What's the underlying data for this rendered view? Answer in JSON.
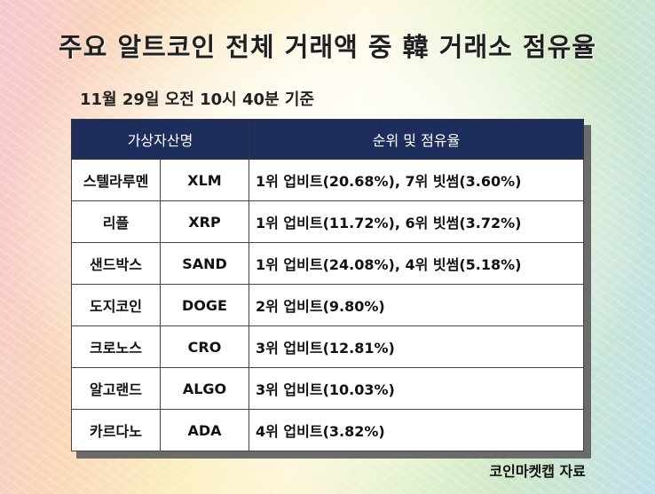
{
  "title": "주요 알트코인 전체 거래액 중 韓 거래소 점유율",
  "subtitle": "11월 29일 오전 10시 40분 기준",
  "table": {
    "headers": [
      "가상자산명",
      "순위 및 점유율"
    ],
    "rows": [
      {
        "name": "스텔라루멘",
        "symbol": "XLM",
        "rank": "1위 업비트(20.68%), 7위 빗썸(3.60%)"
      },
      {
        "name": "리플",
        "symbol": "XRP",
        "rank": "1위 업비트(11.72%), 6위 빗썸(3.72%)"
      },
      {
        "name": "샌드박스",
        "symbol": "SAND",
        "rank": "1위 업비트(24.08%), 4위 빗썸(5.18%)"
      },
      {
        "name": "도지코인",
        "symbol": "DOGE",
        "rank": "2위 업비트(9.80%)"
      },
      {
        "name": "크로노스",
        "symbol": "CRO",
        "rank": "3위 업비트(12.81%)"
      },
      {
        "name": "알고랜드",
        "symbol": "ALGO",
        "rank": "3위 업비트(10.03%)"
      },
      {
        "name": "카르다노",
        "symbol": "ADA",
        "rank": "4위 업비트(3.82%)"
      }
    ]
  },
  "footer": "코인마켓캡 자료",
  "colors": {
    "header_bg": "#1d2e5c",
    "header_text": "#ffffff"
  }
}
